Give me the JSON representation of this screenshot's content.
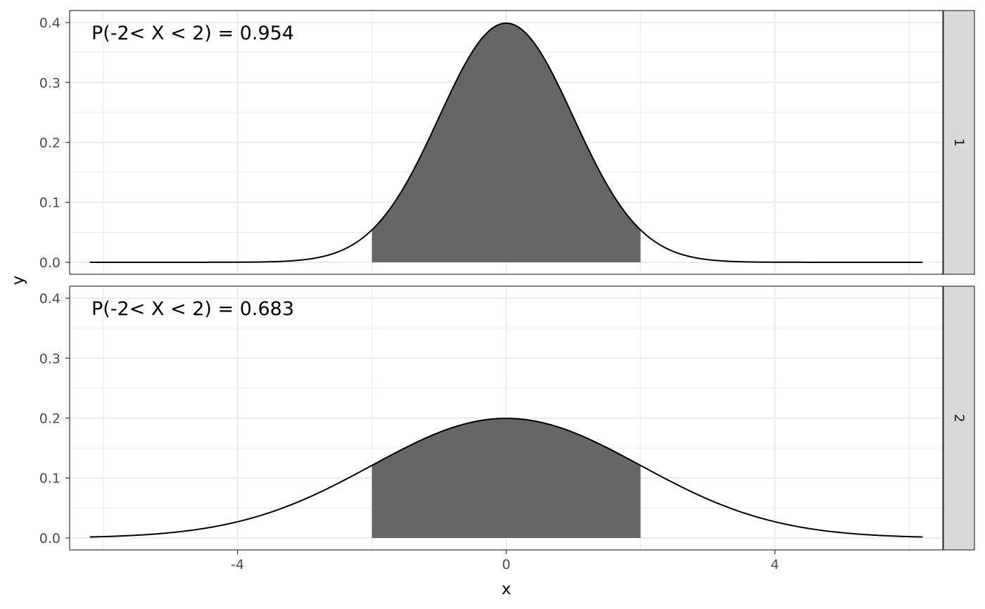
{
  "chart_data": {
    "type": "area",
    "xlabel": "x",
    "ylabel": "y",
    "xlim": [
      -6.5,
      6.5
    ],
    "ylim": [
      -0.02,
      0.42
    ],
    "x_ticks": [
      -4,
      0,
      4
    ],
    "y_ticks": [
      0.0,
      0.1,
      0.2,
      0.3,
      0.4
    ],
    "y_tick_labels": [
      "0.0",
      "0.1",
      "0.2",
      "0.3",
      "0.4"
    ],
    "grid": true,
    "facet_layout": "rows",
    "shaded_interval": [
      -2,
      2
    ],
    "fill_color": "#666666",
    "line_color": "#000000",
    "panels": [
      {
        "strip_label": "1",
        "annotation": "P(-2< X < 2) = 0.954",
        "distribution": "normal",
        "mean": 0,
        "sd": 1,
        "x_range": [
          -6.2,
          6.2
        ],
        "peak_y": 0.399
      },
      {
        "strip_label": "2",
        "annotation": "P(-2< X < 2) = 0.683",
        "distribution": "normal",
        "mean": 0,
        "sd": 2,
        "x_range": [
          -6.2,
          6.2
        ],
        "peak_y": 0.199
      }
    ]
  }
}
